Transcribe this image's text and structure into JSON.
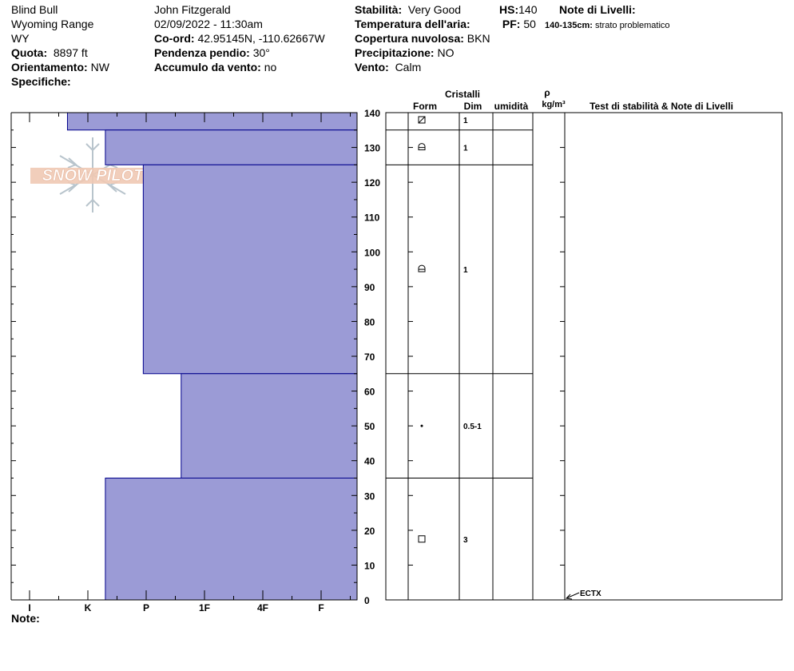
{
  "header": {
    "location": "Blind Bull",
    "range": "Wyoming Range",
    "state": "WY",
    "elevation_label": "Quota:",
    "elevation_value": "8897 ft",
    "aspect_label": "Orientamento:",
    "aspect_value": "NW",
    "specifics_label": "Specifiche:",
    "observer": "John Fitzgerald",
    "datetime": "02/09/2022 - 11:30am",
    "coords_label": "Co-ord:",
    "coords_value": "42.95145N, -110.62667W",
    "slope_label": "Pendenza pendio:",
    "slope_value": "30°",
    "wind_loading_label": "Accumulo da vento:",
    "wind_loading_value": "no",
    "stability_label": "Stabilità:",
    "stability_value": "Very Good",
    "air_temp_label": "Temperatura dell'aria:",
    "sky_label": "Copertura nuvolosa:",
    "sky_value": "BKN",
    "precip_label": "Precipitazione:",
    "precip_value": "NO",
    "wind_label": "Vento:",
    "wind_value": "Calm",
    "hs_label": "HS:",
    "hs_value": "140",
    "pf_label": "PF:",
    "pf_value": "50",
    "layer_notes_label": "Note di Livelli:",
    "layer_note_range": "140-135cm:",
    "layer_note_text": "strato problematico",
    "notes_label": "Note:"
  },
  "logo_text": "SNOW PILOT",
  "table_headers": {
    "crystals": "Cristalli",
    "form": "Form",
    "size": "Dim",
    "moisture": "umidità",
    "rho": "ρ",
    "density_unit": "kg/m³",
    "tests": "Test di stabilità & Note di Livelli"
  },
  "colors": {
    "hardness_fill": "#9b9bd6",
    "hardness_stroke": "#00008b"
  },
  "chart_data": {
    "type": "bar",
    "title": "",
    "hardness_categories": [
      "I",
      "K",
      "P",
      "1F",
      "4F",
      "F"
    ],
    "depth_ticks": [
      0,
      10,
      20,
      30,
      40,
      50,
      60,
      70,
      80,
      90,
      100,
      110,
      120,
      130,
      140
    ],
    "ylim": [
      0,
      140
    ],
    "layers": [
      {
        "top": 140,
        "bottom": 135,
        "hardness": 0.65,
        "form": "grain-decomposing",
        "size": "1"
      },
      {
        "top": 135,
        "bottom": 125,
        "hardness": 1.3,
        "form": "rounded",
        "size": "1"
      },
      {
        "top": 125,
        "bottom": 65,
        "hardness": 1.95,
        "form": "rounded",
        "size": "1"
      },
      {
        "top": 65,
        "bottom": 35,
        "hardness": 2.6,
        "form": "dot",
        "size": "0.5-1"
      },
      {
        "top": 35,
        "bottom": 0,
        "hardness": 1.3,
        "form": "faceted",
        "size": "3"
      }
    ],
    "tests": [
      {
        "depth": 0,
        "label": "ECTX"
      }
    ]
  }
}
